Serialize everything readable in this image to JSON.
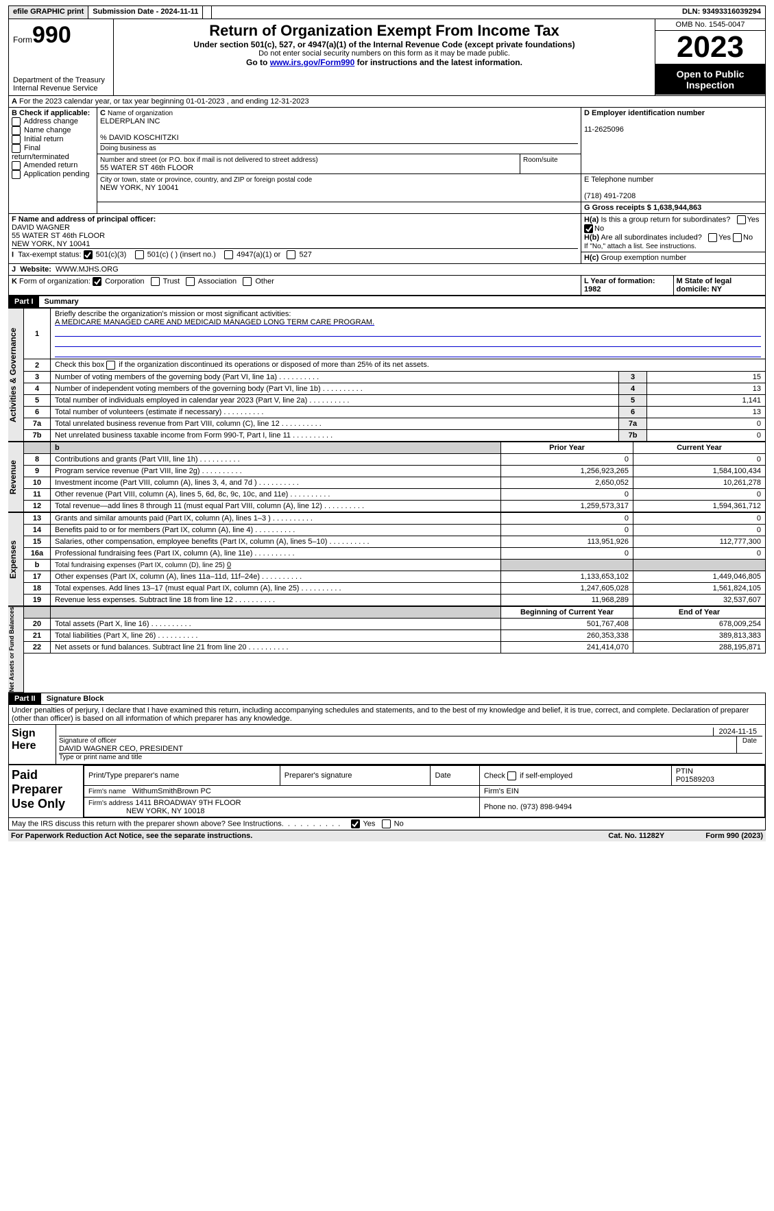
{
  "topbar": {
    "efile": "efile GRAPHIC print",
    "subdate_lbl": "Submission Date - 2024-11-11",
    "dln_lbl": "DLN: 93493316039294"
  },
  "header": {
    "form_word": "Form",
    "form_num": "990",
    "dept": "Department of the Treasury",
    "irs": "Internal Revenue Service",
    "title": "Return of Organization Exempt From Income Tax",
    "under": "Under section 501(c), 527, or 4947(a)(1) of the Internal Revenue Code (except private foundations)",
    "ssn": "Do not enter social security numbers on this form as it may be made public.",
    "goto_pre": "Go to ",
    "goto_link": "www.irs.gov/Form990",
    "goto_post": " for instructions and the latest information.",
    "omb": "OMB No. 1545-0047",
    "year": "2023",
    "open": "Open to Public Inspection"
  },
  "secA": {
    "taxyear": "For the 2023 calendar year, or tax year beginning 01-01-2023   , and ending 12-31-2023",
    "B_lbl": "B Check if applicable:",
    "B_opts": [
      "Address change",
      "Name change",
      "Initial return",
      "Final return/terminated",
      "Amended return",
      "Application pending"
    ],
    "C_lbl": "Name of organization",
    "C_name": "ELDERPLAN INC",
    "C_care": "% DAVID KOSCHITZKI",
    "dba_lbl": "Doing business as",
    "addr_lbl": "Number and street (or P.O. box if mail is not delivered to street address)",
    "room_lbl": "Room/suite",
    "addr": "55 WATER ST 46th FLOOR",
    "city_lbl": "City or town, state or province, country, and ZIP or foreign postal code",
    "city": "NEW YORK, NY  10041",
    "D_lbl": "D Employer identification number",
    "D_val": "11-2625096",
    "E_lbl": "E Telephone number",
    "E_val": "(718) 491-7208",
    "G_lbl": "G Gross receipts $ 1,638,944,863",
    "F_lbl": "F  Name and address of principal officer:",
    "F_name": "DAVID WAGNER",
    "F_addr1": "55 WATER ST 46th FLOOR",
    "F_addr2": "NEW YORK, NY  10041",
    "Ha": "Is this a group return for subordinates?",
    "Hb": "Are all subordinates included?",
    "Hb_note": "If \"No,\" attach a list. See instructions.",
    "Hc": "Group exemption number",
    "I_lbl": "Tax-exempt status:",
    "I_opts": [
      "501(c)(3)",
      "501(c) (  ) (insert no.)",
      "4947(a)(1) or",
      "527"
    ],
    "J_lbl": "Website:",
    "J_val": "WWW.MJHS.ORG",
    "K_lbl": "Form of organization:",
    "K_opts": [
      "Corporation",
      "Trust",
      "Association",
      "Other"
    ],
    "L_lbl": "L Year of formation: 1982",
    "M_lbl": "M State of legal domicile: NY",
    "yes": "Yes",
    "no": "No"
  },
  "part1": {
    "hdr": "Part I",
    "title": "Summary",
    "l1": "Briefly describe the organization's mission or most significant activities:",
    "l1_val": "A MEDICARE MANAGED CARE AND MEDICAID MANAGED LONG TERM CARE PROGRAM.",
    "l2": "Check this box      if the organization discontinued its operations or disposed of more than 25% of its net assets.",
    "rows_top": [
      {
        "n": "3",
        "t": "Number of voting members of the governing body (Part VI, line 1a)",
        "v": "15"
      },
      {
        "n": "4",
        "t": "Number of independent voting members of the governing body (Part VI, line 1b)",
        "v": "13"
      },
      {
        "n": "5",
        "t": "Total number of individuals employed in calendar year 2023 (Part V, line 2a)",
        "v": "1,141"
      },
      {
        "n": "6",
        "t": "Total number of volunteers (estimate if necessary)",
        "v": "13"
      },
      {
        "n": "7a",
        "t": "Total unrelated business revenue from Part VIII, column (C), line 12",
        "v": "0"
      },
      {
        "n": "7b",
        "t": "Net unrelated business taxable income from Form 990-T, Part I, line 11",
        "v": "0"
      }
    ],
    "col_prior": "Prior Year",
    "col_curr": "Current Year",
    "rev_label": "Revenue",
    "rev_rows": [
      {
        "n": "8",
        "t": "Contributions and grants (Part VIII, line 1h)",
        "p": "0",
        "c": "0"
      },
      {
        "n": "9",
        "t": "Program service revenue (Part VIII, line 2g)",
        "p": "1,256,923,265",
        "c": "1,584,100,434"
      },
      {
        "n": "10",
        "t": "Investment income (Part VIII, column (A), lines 3, 4, and 7d )",
        "p": "2,650,052",
        "c": "10,261,278"
      },
      {
        "n": "11",
        "t": "Other revenue (Part VIII, column (A), lines 5, 6d, 8c, 9c, 10c, and 11e)",
        "p": "0",
        "c": "0"
      },
      {
        "n": "12",
        "t": "Total revenue—add lines 8 through 11 (must equal Part VIII, column (A), line 12)",
        "p": "1,259,573,317",
        "c": "1,594,361,712"
      }
    ],
    "exp_label": "Expenses",
    "exp_rows": [
      {
        "n": "13",
        "t": "Grants and similar amounts paid (Part IX, column (A), lines 1–3 )",
        "p": "0",
        "c": "0"
      },
      {
        "n": "14",
        "t": "Benefits paid to or for members (Part IX, column (A), line 4)",
        "p": "0",
        "c": "0"
      },
      {
        "n": "15",
        "t": "Salaries, other compensation, employee benefits (Part IX, column (A), lines 5–10)",
        "p": "113,951,926",
        "c": "112,777,300"
      },
      {
        "n": "16a",
        "t": "Professional fundraising fees (Part IX, column (A), line 11e)",
        "p": "0",
        "c": "0"
      }
    ],
    "l16b": "Total fundraising expenses (Part IX, column (D), line 25)",
    "l16b_val": "0",
    "exp_rows2": [
      {
        "n": "17",
        "t": "Other expenses (Part IX, column (A), lines 11a–11d, 11f–24e)",
        "p": "1,133,653,102",
        "c": "1,449,046,805"
      },
      {
        "n": "18",
        "t": "Total expenses. Add lines 13–17 (must equal Part IX, column (A), line 25)",
        "p": "1,247,605,028",
        "c": "1,561,824,105"
      },
      {
        "n": "19",
        "t": "Revenue less expenses. Subtract line 18 from line 12",
        "p": "11,968,289",
        "c": "32,537,607"
      }
    ],
    "na_label": "Net Assets or Fund Balances",
    "col_beg": "Beginning of Current Year",
    "col_end": "End of Year",
    "na_rows": [
      {
        "n": "20",
        "t": "Total assets (Part X, line 16)",
        "p": "501,767,408",
        "c": "678,009,254"
      },
      {
        "n": "21",
        "t": "Total liabilities (Part X, line 26)",
        "p": "260,353,338",
        "c": "389,813,383"
      },
      {
        "n": "22",
        "t": "Net assets or fund balances. Subtract line 21 from line 20",
        "p": "241,414,070",
        "c": "288,195,871"
      }
    ],
    "gov_label": "Activities & Governance"
  },
  "part2": {
    "hdr": "Part II",
    "title": "Signature Block",
    "perjury": "Under penalties of perjury, I declare that I have examined this return, including accompanying schedules and statements, and to the best of my knowledge and belief, it is true, correct, and complete. Declaration of preparer (other than officer) is based on all information of which preparer has any knowledge.",
    "signhere": "Sign Here",
    "sig_date": "2024-11-15",
    "sig_officer_lbl": "Signature of officer",
    "sig_officer": "DAVID WAGNER  CEO, PRESIDENT",
    "sig_type_lbl": "Type or print name and title",
    "date_lbl": "Date",
    "paid": "Paid Preparer Use Only",
    "prep_name_lbl": "Print/Type preparer's name",
    "prep_sig_lbl": "Preparer's signature",
    "self_lbl": "Check      if self-employed",
    "ptin_lbl": "PTIN",
    "ptin": "P01589203",
    "firm_name_lbl": "Firm's name",
    "firm_name": "WithumSmithBrown PC",
    "firm_ein_lbl": "Firm's EIN",
    "firm_addr_lbl": "Firm's address",
    "firm_addr": "1411 BROADWAY 9TH FLOOR",
    "firm_city": "NEW YORK, NY  10018",
    "phone_lbl": "Phone no. (973) 898-9494",
    "discuss": "May the IRS discuss this return with the preparer shown above? See Instructions."
  },
  "footer": {
    "pra": "For Paperwork Reduction Act Notice, see the separate instructions.",
    "cat": "Cat. No. 11282Y",
    "form": "Form 990 (2023)"
  }
}
